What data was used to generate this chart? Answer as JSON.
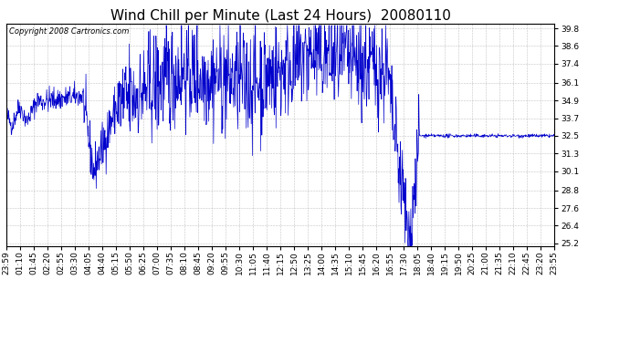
{
  "title": "Wind Chill per Minute (Last 24 Hours)  20080110",
  "copyright_text": "Copyright 2008 Cartronics.com",
  "line_color": "#0000cc",
  "background_color": "#ffffff",
  "plot_bg_color": "#ffffff",
  "grid_color": "#aaaaaa",
  "yticks": [
    25.2,
    26.4,
    27.6,
    28.8,
    30.1,
    31.3,
    32.5,
    33.7,
    34.9,
    36.1,
    37.4,
    38.6,
    39.8
  ],
  "ylim": [
    25.0,
    40.1
  ],
  "xtick_labels": [
    "23:59",
    "01:10",
    "01:45",
    "02:20",
    "02:55",
    "03:30",
    "04:05",
    "04:40",
    "05:15",
    "05:50",
    "06:25",
    "07:00",
    "07:35",
    "08:10",
    "08:45",
    "09:20",
    "09:55",
    "10:30",
    "11:05",
    "11:40",
    "12:15",
    "12:50",
    "13:25",
    "14:00",
    "14:35",
    "15:10",
    "15:45",
    "16:20",
    "16:55",
    "17:30",
    "18:05",
    "18:40",
    "19:15",
    "19:50",
    "20:25",
    "21:00",
    "21:35",
    "22:10",
    "22:45",
    "23:20",
    "23:55"
  ],
  "title_fontsize": 11,
  "tick_fontsize": 6.5,
  "copyright_fontsize": 6.0
}
